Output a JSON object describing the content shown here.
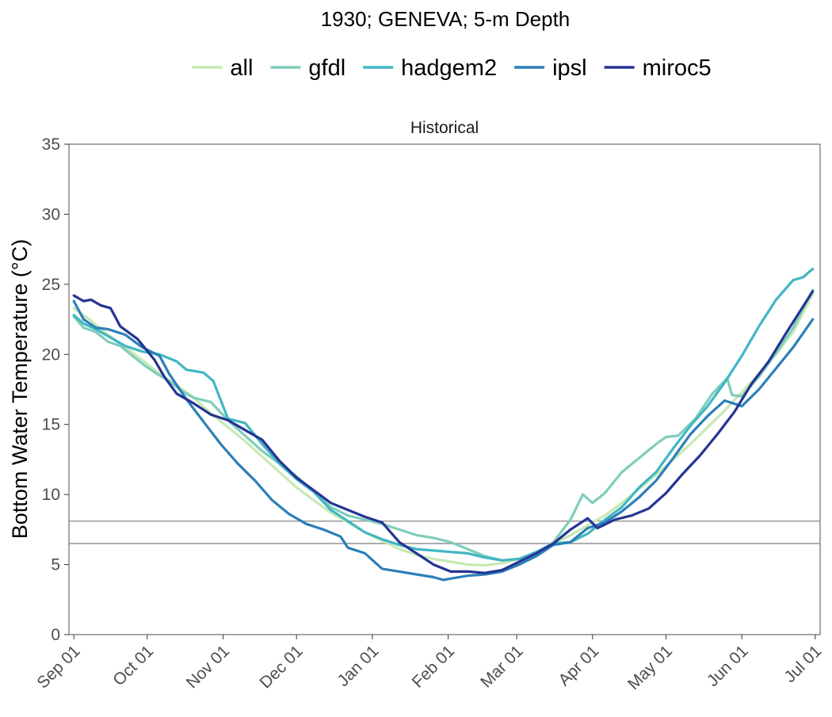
{
  "chart_data": {
    "type": "line",
    "title": "1930; GENEVA; 5-m Depth",
    "facet_label": "Historical",
    "xlabel": "",
    "ylabel": "Bottom Water Temperature (°C)",
    "ylim": [
      0,
      35
    ],
    "yticks": [
      0,
      5,
      10,
      15,
      20,
      25,
      30,
      35
    ],
    "xlim": [
      "1930-08-30",
      "1931-07-03"
    ],
    "xticks": [
      {
        "date": "1930-09-01",
        "label": "Sep 01"
      },
      {
        "date": "1930-10-01",
        "label": "Oct 01"
      },
      {
        "date": "1930-11-01",
        "label": "Nov 01"
      },
      {
        "date": "1930-12-01",
        "label": "Dec 01"
      },
      {
        "date": "1931-01-01",
        "label": "Jan 01"
      },
      {
        "date": "1931-02-01",
        "label": "Feb 01"
      },
      {
        "date": "1931-03-01",
        "label": "Mar 01"
      },
      {
        "date": "1931-04-01",
        "label": "Apr 01"
      },
      {
        "date": "1931-05-01",
        "label": "May 01"
      },
      {
        "date": "1931-06-01",
        "label": "Jun 01"
      },
      {
        "date": "1931-07-01",
        "label": "Jul 01"
      }
    ],
    "reference_lines": [
      6.5,
      8.1
    ],
    "reference_line_color": "#999999",
    "grid": false,
    "legend_position": "top",
    "series": [
      {
        "name": "all",
        "color": "#c7e9b4",
        "points": [
          [
            "1930-09-01",
            23.3
          ],
          [
            "1930-09-08",
            22.4
          ],
          [
            "1930-09-15",
            21.4
          ],
          [
            "1930-09-22",
            20.5
          ],
          [
            "1930-09-29",
            19.6
          ],
          [
            "1930-10-06",
            18.6
          ],
          [
            "1930-10-13",
            17.8
          ],
          [
            "1930-10-20",
            16.9
          ],
          [
            "1930-10-27",
            15.8
          ],
          [
            "1930-11-03",
            14.8
          ],
          [
            "1930-11-10",
            13.8
          ],
          [
            "1930-11-17",
            12.7
          ],
          [
            "1930-11-24",
            11.6
          ],
          [
            "1930-12-01",
            10.5
          ],
          [
            "1930-12-08",
            9.6
          ],
          [
            "1930-12-15",
            8.7
          ],
          [
            "1930-12-22",
            8.0
          ],
          [
            "1930-12-29",
            7.3
          ],
          [
            "1931-01-05",
            6.7
          ],
          [
            "1931-01-12",
            6.1
          ],
          [
            "1931-01-19",
            5.7
          ],
          [
            "1931-01-26",
            5.4
          ],
          [
            "1931-02-02",
            5.2
          ],
          [
            "1931-02-09",
            5.0
          ],
          [
            "1931-02-16",
            4.95
          ],
          [
            "1931-02-23",
            5.1
          ],
          [
            "1931-03-02",
            5.4
          ],
          [
            "1931-03-09",
            5.9
          ],
          [
            "1931-03-16",
            6.5
          ],
          [
            "1931-03-23",
            7.1
          ],
          [
            "1931-03-30",
            7.8
          ],
          [
            "1931-04-06",
            8.5
          ],
          [
            "1931-04-13",
            9.4
          ],
          [
            "1931-04-20",
            10.4
          ],
          [
            "1931-04-27",
            11.4
          ],
          [
            "1931-05-04",
            12.5
          ],
          [
            "1931-05-11",
            13.6
          ],
          [
            "1931-05-18",
            14.8
          ],
          [
            "1931-05-25",
            16.0
          ],
          [
            "1931-06-01",
            17.3
          ],
          [
            "1931-06-08",
            18.6
          ],
          [
            "1931-06-15",
            20.0
          ],
          [
            "1931-06-22",
            21.6
          ],
          [
            "1931-06-30",
            24.3
          ]
        ]
      },
      {
        "name": "gfdl",
        "color": "#7fcdbb",
        "points": [
          [
            "1930-09-01",
            22.7
          ],
          [
            "1930-09-05",
            21.9
          ],
          [
            "1930-09-10",
            21.6
          ],
          [
            "1930-09-15",
            20.9
          ],
          [
            "1930-09-20",
            20.6
          ],
          [
            "1930-09-25",
            19.9
          ],
          [
            "1930-09-30",
            19.2
          ],
          [
            "1930-10-05",
            18.6
          ],
          [
            "1930-10-10",
            18.1
          ],
          [
            "1930-10-15",
            17.4
          ],
          [
            "1930-10-20",
            16.9
          ],
          [
            "1930-10-27",
            16.6
          ],
          [
            "1930-11-03",
            15.3
          ],
          [
            "1930-11-10",
            14.2
          ],
          [
            "1930-11-17",
            13.1
          ],
          [
            "1930-11-24",
            12.2
          ],
          [
            "1930-12-01",
            11.3
          ],
          [
            "1930-12-08",
            10.2
          ],
          [
            "1930-12-15",
            9.1
          ],
          [
            "1930-12-22",
            8.5
          ],
          [
            "1930-12-29",
            8.2
          ],
          [
            "1931-01-05",
            7.9
          ],
          [
            "1931-01-12",
            7.5
          ],
          [
            "1931-01-19",
            7.1
          ],
          [
            "1931-01-26",
            6.9
          ],
          [
            "1931-02-02",
            6.6
          ],
          [
            "1931-02-09",
            6.1
          ],
          [
            "1931-02-16",
            5.6
          ],
          [
            "1931-02-23",
            5.3
          ],
          [
            "1931-03-02",
            5.4
          ],
          [
            "1931-03-09",
            5.8
          ],
          [
            "1931-03-16",
            6.6
          ],
          [
            "1931-03-23",
            8.2
          ],
          [
            "1931-03-28",
            10.0
          ],
          [
            "1931-04-01",
            9.4
          ],
          [
            "1931-04-06",
            10.1
          ],
          [
            "1931-04-13",
            11.6
          ],
          [
            "1931-04-20",
            12.6
          ],
          [
            "1931-04-27",
            13.6
          ],
          [
            "1931-05-01",
            14.1
          ],
          [
            "1931-05-06",
            14.2
          ],
          [
            "1931-05-13",
            15.4
          ],
          [
            "1931-05-20",
            17.2
          ],
          [
            "1931-05-26",
            18.3
          ],
          [
            "1931-05-28",
            17.1
          ],
          [
            "1931-06-01",
            17.0
          ],
          [
            "1931-06-08",
            18.4
          ],
          [
            "1931-06-15",
            20.1
          ],
          [
            "1931-06-22",
            21.9
          ],
          [
            "1931-06-30",
            24.6
          ]
        ]
      },
      {
        "name": "hadgem2",
        "color": "#41b6c4",
        "points": [
          [
            "1930-09-01",
            22.8
          ],
          [
            "1930-09-05",
            22.2
          ],
          [
            "1930-09-10",
            21.8
          ],
          [
            "1930-09-15",
            21.3
          ],
          [
            "1930-09-22",
            20.6
          ],
          [
            "1930-09-29",
            20.2
          ],
          [
            "1930-10-06",
            20.0
          ],
          [
            "1930-10-13",
            19.5
          ],
          [
            "1930-10-17",
            18.9
          ],
          [
            "1930-10-24",
            18.7
          ],
          [
            "1930-10-28",
            18.1
          ],
          [
            "1930-11-03",
            15.4
          ],
          [
            "1930-11-10",
            15.1
          ],
          [
            "1930-11-17",
            13.6
          ],
          [
            "1930-11-24",
            12.2
          ],
          [
            "1930-12-01",
            11.1
          ],
          [
            "1930-12-08",
            10.2
          ],
          [
            "1930-12-15",
            8.9
          ],
          [
            "1930-12-22",
            8.1
          ],
          [
            "1930-12-29",
            7.3
          ],
          [
            "1931-01-05",
            6.8
          ],
          [
            "1931-01-12",
            6.4
          ],
          [
            "1931-01-19",
            6.1
          ],
          [
            "1931-01-26",
            6.0
          ],
          [
            "1931-02-02",
            5.9
          ],
          [
            "1931-02-09",
            5.8
          ],
          [
            "1931-02-16",
            5.5
          ],
          [
            "1931-02-23",
            5.3
          ],
          [
            "1931-03-02",
            5.4
          ],
          [
            "1931-03-09",
            5.9
          ],
          [
            "1931-03-16",
            6.5
          ],
          [
            "1931-03-23",
            6.6
          ],
          [
            "1931-03-30",
            7.2
          ],
          [
            "1931-04-06",
            8.2
          ],
          [
            "1931-04-13",
            9.1
          ],
          [
            "1931-04-20",
            10.5
          ],
          [
            "1931-04-27",
            11.6
          ],
          [
            "1931-05-04",
            13.3
          ],
          [
            "1931-05-11",
            14.9
          ],
          [
            "1931-05-18",
            16.3
          ],
          [
            "1931-05-25",
            18.0
          ],
          [
            "1931-06-01",
            19.9
          ],
          [
            "1931-06-08",
            22.0
          ],
          [
            "1931-06-15",
            23.9
          ],
          [
            "1931-06-22",
            25.3
          ],
          [
            "1931-06-26",
            25.5
          ],
          [
            "1931-06-30",
            26.1
          ]
        ]
      },
      {
        "name": "ipsl",
        "color": "#2c7fb8",
        "points": [
          [
            "1930-09-01",
            23.8
          ],
          [
            "1930-09-05",
            22.5
          ],
          [
            "1930-09-10",
            21.9
          ],
          [
            "1930-09-15",
            21.8
          ],
          [
            "1930-09-22",
            21.4
          ],
          [
            "1930-09-29",
            20.5
          ],
          [
            "1930-10-06",
            19.9
          ],
          [
            "1930-10-10",
            18.6
          ],
          [
            "1930-10-17",
            16.8
          ],
          [
            "1930-10-24",
            15.2
          ],
          [
            "1930-10-31",
            13.6
          ],
          [
            "1930-11-07",
            12.2
          ],
          [
            "1930-11-14",
            11.0
          ],
          [
            "1930-11-21",
            9.6
          ],
          [
            "1930-11-28",
            8.6
          ],
          [
            "1930-12-05",
            7.9
          ],
          [
            "1930-12-12",
            7.5
          ],
          [
            "1930-12-19",
            7.0
          ],
          [
            "1930-12-22",
            6.2
          ],
          [
            "1930-12-29",
            5.8
          ],
          [
            "1931-01-05",
            4.7
          ],
          [
            "1931-01-12",
            4.5
          ],
          [
            "1931-01-19",
            4.3
          ],
          [
            "1931-01-26",
            4.1
          ],
          [
            "1931-01-30",
            3.9
          ],
          [
            "1931-02-02",
            4.0
          ],
          [
            "1931-02-09",
            4.2
          ],
          [
            "1931-02-16",
            4.3
          ],
          [
            "1931-02-23",
            4.5
          ],
          [
            "1931-03-02",
            5.0
          ],
          [
            "1931-03-09",
            5.6
          ],
          [
            "1931-03-16",
            6.4
          ],
          [
            "1931-03-23",
            6.6
          ],
          [
            "1931-03-30",
            7.6
          ],
          [
            "1931-04-06",
            8.0
          ],
          [
            "1931-04-13",
            8.8
          ],
          [
            "1931-04-20",
            9.8
          ],
          [
            "1931-04-27",
            11.0
          ],
          [
            "1931-05-04",
            12.6
          ],
          [
            "1931-05-11",
            14.3
          ],
          [
            "1931-05-18",
            15.6
          ],
          [
            "1931-05-25",
            16.7
          ],
          [
            "1931-06-01",
            16.3
          ],
          [
            "1931-06-08",
            17.5
          ],
          [
            "1931-06-15",
            19.0
          ],
          [
            "1931-06-22",
            20.5
          ],
          [
            "1931-06-30",
            22.5
          ]
        ]
      },
      {
        "name": "miroc5",
        "color": "#253494",
        "points": [
          [
            "1930-09-01",
            24.2
          ],
          [
            "1930-09-05",
            23.8
          ],
          [
            "1930-09-08",
            23.9
          ],
          [
            "1930-09-12",
            23.5
          ],
          [
            "1930-09-16",
            23.3
          ],
          [
            "1930-09-20",
            22.0
          ],
          [
            "1930-09-27",
            21.1
          ],
          [
            "1930-10-04",
            19.6
          ],
          [
            "1930-10-08",
            18.4
          ],
          [
            "1930-10-13",
            17.2
          ],
          [
            "1930-10-20",
            16.5
          ],
          [
            "1930-10-27",
            15.7
          ],
          [
            "1930-11-03",
            15.3
          ],
          [
            "1930-11-10",
            14.6
          ],
          [
            "1930-11-17",
            13.9
          ],
          [
            "1930-11-24",
            12.4
          ],
          [
            "1930-12-01",
            11.2
          ],
          [
            "1930-12-08",
            10.3
          ],
          [
            "1930-12-15",
            9.4
          ],
          [
            "1930-12-22",
            8.9
          ],
          [
            "1930-12-29",
            8.4
          ],
          [
            "1931-01-05",
            8.0
          ],
          [
            "1931-01-12",
            6.6
          ],
          [
            "1931-01-19",
            5.8
          ],
          [
            "1931-01-26",
            5.0
          ],
          [
            "1931-02-02",
            4.5
          ],
          [
            "1931-02-09",
            4.5
          ],
          [
            "1931-02-16",
            4.4
          ],
          [
            "1931-02-23",
            4.6
          ],
          [
            "1931-03-02",
            5.2
          ],
          [
            "1931-03-09",
            5.8
          ],
          [
            "1931-03-16",
            6.5
          ],
          [
            "1931-03-23",
            7.5
          ],
          [
            "1931-03-30",
            8.3
          ],
          [
            "1931-04-03",
            7.6
          ],
          [
            "1931-04-10",
            8.2
          ],
          [
            "1931-04-17",
            8.5
          ],
          [
            "1931-04-24",
            9.0
          ],
          [
            "1931-05-01",
            10.1
          ],
          [
            "1931-05-08",
            11.5
          ],
          [
            "1931-05-15",
            12.8
          ],
          [
            "1931-05-22",
            14.3
          ],
          [
            "1931-05-29",
            15.9
          ],
          [
            "1931-06-05",
            17.9
          ],
          [
            "1931-06-12",
            19.5
          ],
          [
            "1931-06-19",
            21.5
          ],
          [
            "1931-06-30",
            24.5
          ]
        ]
      }
    ]
  }
}
